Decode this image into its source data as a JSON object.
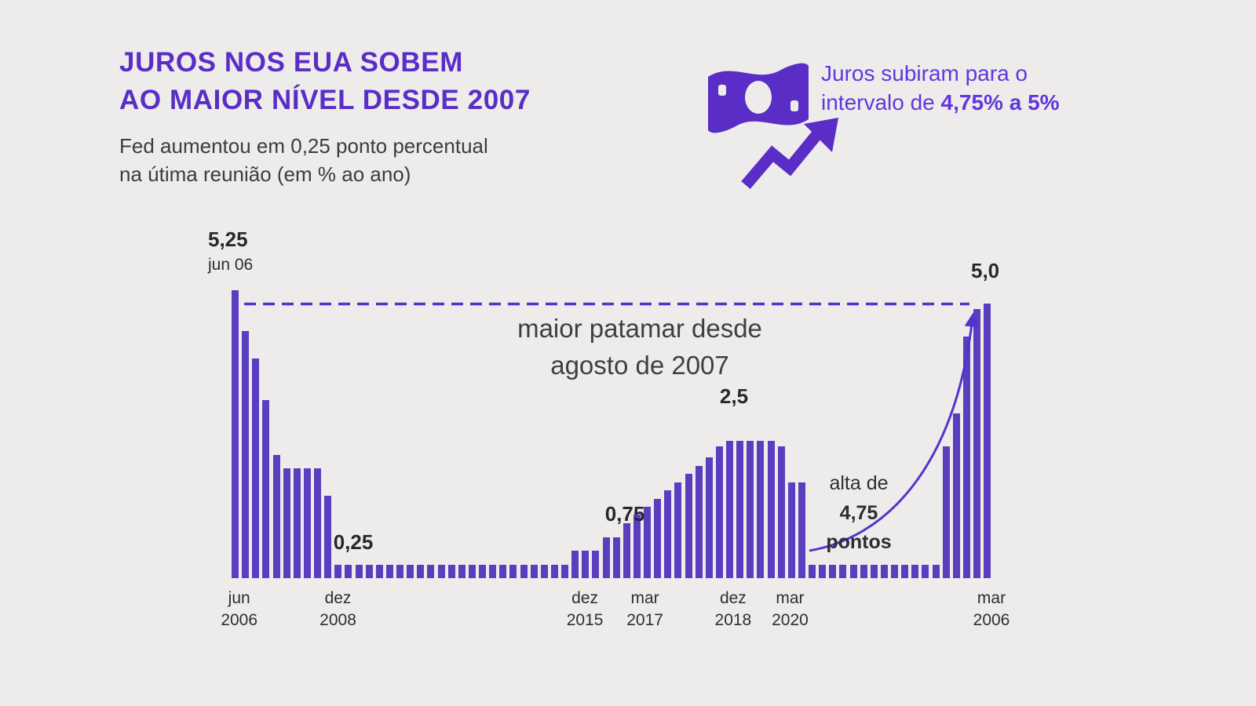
{
  "colors": {
    "bg": "#edeceb",
    "purple": "#5a2dc7",
    "bar": "#5b3dc0",
    "accent": "#6236dd",
    "dark": "#2d2d35",
    "gray_text": "#3b3b42",
    "line": "#5433cc"
  },
  "header": {
    "title_line1": "JUROS NOS EUA SOBEM",
    "title_line2": "AO MAIOR NÍVEL DESDE 2007",
    "subtitle_line1": "Fed aumentou em 0,25 ponto percentual",
    "subtitle_line2": "na útima reunião (em % ao ano)"
  },
  "callout": {
    "line1": "Juros subiram para o",
    "line2_prefix": "intervalo de ",
    "line2_bold": "4,75% a 5%",
    "icon": "banknote-with-up-arrow-icon"
  },
  "chart_data": {
    "type": "bar",
    "title": "",
    "xlabel": "",
    "ylabel": "",
    "ylim": [
      0,
      5.25
    ],
    "grid": false,
    "target_line_value": 5.0,
    "values": [
      5.25,
      4.5,
      4.0,
      3.25,
      2.25,
      2.0,
      2.0,
      2.0,
      2.0,
      1.5,
      0.25,
      0.25,
      0.25,
      0.25,
      0.25,
      0.25,
      0.25,
      0.25,
      0.25,
      0.25,
      0.25,
      0.25,
      0.25,
      0.25,
      0.25,
      0.25,
      0.25,
      0.25,
      0.25,
      0.25,
      0.25,
      0.25,
      0.25,
      0.5,
      0.5,
      0.5,
      0.75,
      0.75,
      1.0,
      1.16,
      1.3,
      1.45,
      1.6,
      1.75,
      1.9,
      2.05,
      2.2,
      2.4,
      2.5,
      2.5,
      2.5,
      2.5,
      2.5,
      2.4,
      1.75,
      1.75,
      0.25,
      0.25,
      0.25,
      0.25,
      0.25,
      0.25,
      0.25,
      0.25,
      0.25,
      0.25,
      0.25,
      0.25,
      0.25,
      2.4,
      3.0,
      4.4,
      4.9,
      5.0
    ],
    "x_axis_labels": [
      {
        "line1": "jun",
        "line2": "2006",
        "pos": 1
      },
      {
        "line1": "dez",
        "line2": "2008",
        "pos": 14
      },
      {
        "line1": "dez",
        "line2": "2015",
        "pos": 46.5
      },
      {
        "line1": "mar",
        "line2": "2017",
        "pos": 54.4
      },
      {
        "line1": "dez",
        "line2": "2018",
        "pos": 66
      },
      {
        "line1": "mar",
        "line2": "2020",
        "pos": 73.5
      },
      {
        "line1": "mar",
        "line2": "2006",
        "pos": 100
      }
    ],
    "annotations": {
      "peak_start_value": "5,25",
      "peak_start_date": "jun 06",
      "current_value": "5,0",
      "low_label": "0,25",
      "mid_label": "0,75",
      "peak2_label": "2,5",
      "center_note_line1": "maior patamar desde",
      "center_note_line2": "agosto de 2007",
      "rise_note_line1": "alta de",
      "rise_note_line2": "4,75",
      "rise_note_line3": "pontos"
    }
  }
}
